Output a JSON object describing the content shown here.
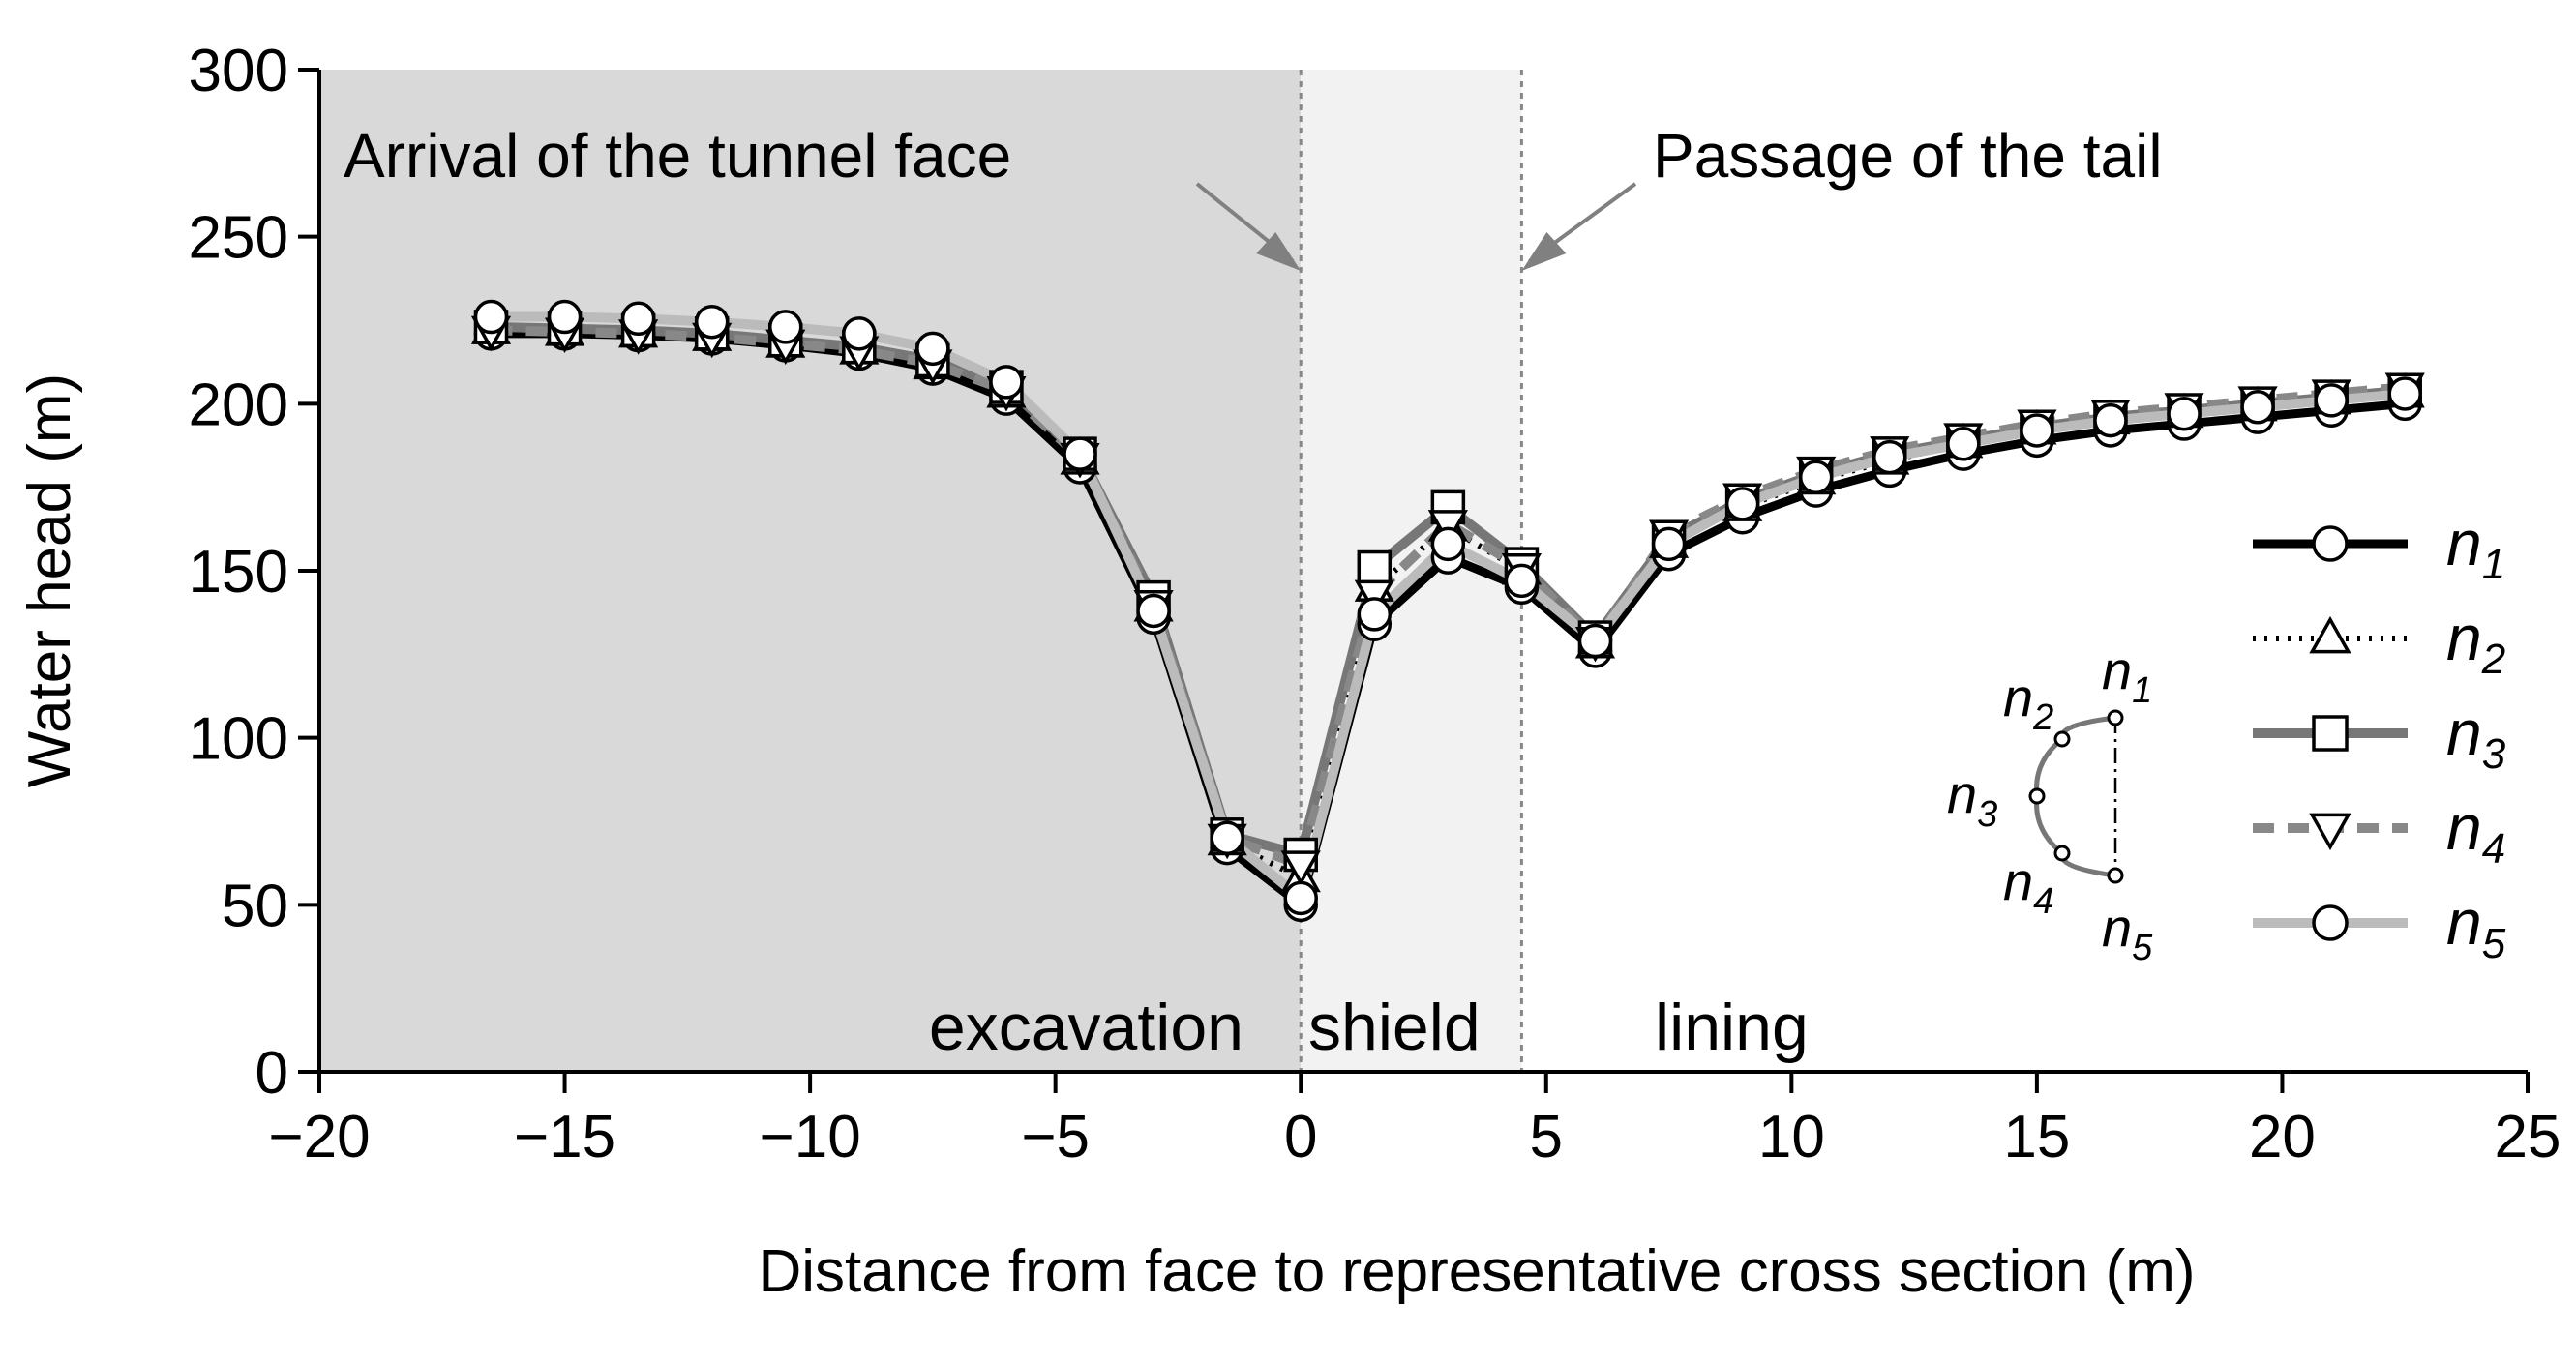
{
  "chart_data": {
    "type": "line",
    "title": "",
    "xlabel": "Distance from face to representative cross section (m)",
    "ylabel": "Water head (m)",
    "xlim": [
      -20,
      25
    ],
    "ylim": [
      0,
      300
    ],
    "xticks": [
      -20,
      -15,
      -10,
      -5,
      0,
      5,
      10,
      15,
      20,
      25
    ],
    "yticks": [
      0,
      50,
      100,
      150,
      200,
      250,
      300
    ],
    "xtick_labels": [
      "−20",
      "−15",
      "−10",
      "−5",
      "0",
      "5",
      "10",
      "15",
      "20",
      "25"
    ],
    "ytick_labels": [
      "0",
      "50",
      "100",
      "150",
      "200",
      "250",
      "300"
    ],
    "x": [
      -16.5,
      -15,
      -13.5,
      -12,
      -10.5,
      -9,
      -7.5,
      -6,
      -4.5,
      -3,
      -1.5,
      0,
      1.5,
      3,
      4.5,
      6,
      7.5,
      9,
      10.5,
      12,
      13.5,
      15,
      16.5,
      18,
      19.5,
      21,
      22.5
    ],
    "series": [
      {
        "name": "n1",
        "base": "n",
        "sub": "1",
        "marker": "circle",
        "line_color": "#000000",
        "dash": "solid",
        "values": [
          221,
          221,
          220.5,
          219.5,
          217.5,
          215,
          210.5,
          201.5,
          181,
          136,
          67,
          50,
          134,
          154,
          145,
          126,
          155,
          166,
          174,
          180,
          185,
          189,
          192,
          194,
          196,
          198,
          200
        ]
      },
      {
        "name": "n2",
        "base": "n",
        "sub": "2",
        "marker": "triangle-up",
        "line_color": "#000000",
        "dash": "dotted",
        "values": [
          222,
          221.5,
          221,
          220,
          218,
          216,
          211.5,
          203,
          183,
          139,
          69,
          58,
          145,
          163,
          150,
          128,
          158,
          169,
          177,
          183,
          188,
          192,
          195,
          197,
          199,
          201,
          203
        ]
      },
      {
        "name": "n3",
        "base": "n",
        "sub": "3",
        "marker": "square",
        "line_color": "#777777",
        "dash": "solid",
        "values": [
          223,
          222.5,
          222,
          221,
          219,
          217,
          213,
          205,
          185,
          142,
          71,
          65,
          151,
          169,
          152,
          130,
          160,
          171,
          179,
          185,
          189,
          193,
          196,
          198,
          200,
          202,
          204
        ]
      },
      {
        "name": "n4",
        "base": "n",
        "sub": "4",
        "marker": "triangle-down",
        "line_color": "#888888",
        "dash": "dashed",
        "values": [
          222,
          221.5,
          221,
          220,
          218,
          216,
          212,
          204,
          184,
          140,
          70,
          62,
          143,
          164,
          151,
          129,
          161,
          172,
          180,
          186,
          190,
          194,
          197,
          199,
          201,
          203,
          205
        ]
      },
      {
        "name": "n5",
        "base": "n",
        "sub": "5",
        "marker": "circle",
        "line_color": "#bbbbbb",
        "dash": "solid",
        "values": [
          226,
          226,
          225.5,
          224.5,
          223,
          221,
          216.5,
          206.5,
          185,
          138,
          70,
          52,
          137,
          158,
          147,
          129,
          158,
          170,
          178,
          184,
          188,
          192,
          195,
          197,
          199,
          201,
          203
        ]
      }
    ],
    "regions": [
      {
        "label": "excavation",
        "x_start": -20,
        "x_end": 0,
        "color": "#d9d9d9"
      },
      {
        "label": "shield",
        "x_start": 0,
        "x_end": 4.5,
        "color": "#f2f2f2"
      },
      {
        "label": "lining",
        "x_start": 4.5,
        "x_end": 25,
        "color": "#ffffff"
      }
    ],
    "annotations": [
      {
        "text": "Arrival of the tunnel face",
        "x": 0
      },
      {
        "text": "Passage of the tail",
        "x": 4.5
      }
    ],
    "legend_location": "right",
    "inset": {
      "description": "half cross-section with monitoring points",
      "points": [
        {
          "base": "n",
          "sub": "1"
        },
        {
          "base": "n",
          "sub": "2"
        },
        {
          "base": "n",
          "sub": "3"
        },
        {
          "base": "n",
          "sub": "4"
        },
        {
          "base": "n",
          "sub": "5"
        }
      ]
    }
  }
}
